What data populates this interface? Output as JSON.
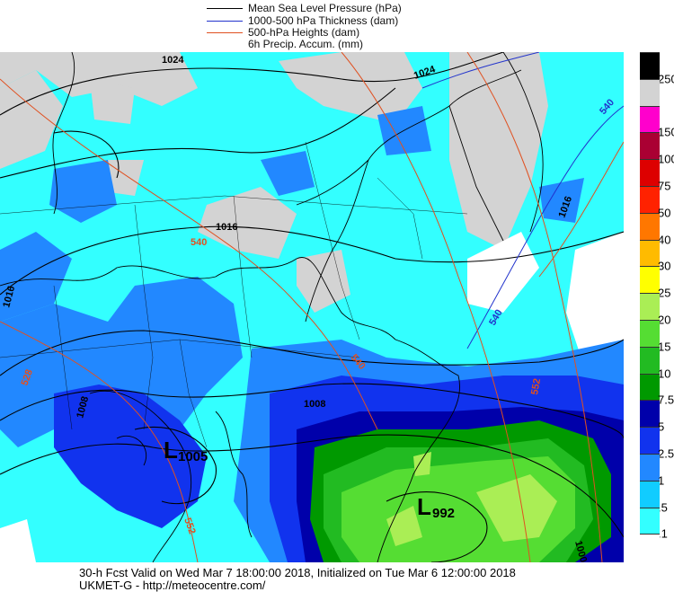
{
  "legend": {
    "items": [
      {
        "label": "Mean Sea Level Pressure (hPa)",
        "color": "#000000"
      },
      {
        "label": "1000-500 hPa Thickness (dam)",
        "color": "#2233cc"
      },
      {
        "label": "500-hPa Heights (dam)",
        "color": "#e05020"
      },
      {
        "label": "6h Precip. Accum. (mm)",
        "color": ""
      }
    ]
  },
  "colorbar": {
    "levels": [
      {
        "label": "250",
        "color": "#000000"
      },
      {
        "label": "",
        "color": "#d3d3d3"
      },
      {
        "label": "150",
        "color": "#ff00cc"
      },
      {
        "label": "100",
        "color": "#aa0033"
      },
      {
        "label": "75",
        "color": "#dd0000"
      },
      {
        "label": "50",
        "color": "#ff2200"
      },
      {
        "label": "40",
        "color": "#ff7700"
      },
      {
        "label": "30",
        "color": "#ffbb00"
      },
      {
        "label": "25",
        "color": "#ffff00"
      },
      {
        "label": "20",
        "color": "#aaee55"
      },
      {
        "label": "15",
        "color": "#55dd33"
      },
      {
        "label": "10",
        "color": "#22bb22"
      },
      {
        "label": "7.5",
        "color": "#009900"
      },
      {
        "label": "5",
        "color": "#0000aa"
      },
      {
        "label": "2.5",
        "color": "#1133ee"
      },
      {
        "label": "1",
        "color": "#2288ff"
      },
      {
        "label": ".5",
        "color": "#11ccff"
      },
      {
        "label": ".1",
        "color": "#33ffff"
      },
      {
        "label": "",
        "color": "#ffffff"
      }
    ]
  },
  "map_labels": {
    "isobars": [
      "1024",
      "1024",
      "1016",
      "1016",
      "1016",
      "1008",
      "1008",
      "1000"
    ],
    "thickness": [
      "540",
      "540"
    ],
    "heights": [
      "540",
      "540",
      "528",
      "552",
      "552"
    ],
    "lows": [
      {
        "mark": "L",
        "value": "1005"
      },
      {
        "mark": "L",
        "value": "992"
      }
    ]
  },
  "footer": {
    "line1": "30-h Fcst Valid on Wed Mar  7 18:00:00 2018, Initialized on Tue Mar  6 12:00:00 2018",
    "line2": "UKMET-G  - http://meteocentre.com/"
  }
}
